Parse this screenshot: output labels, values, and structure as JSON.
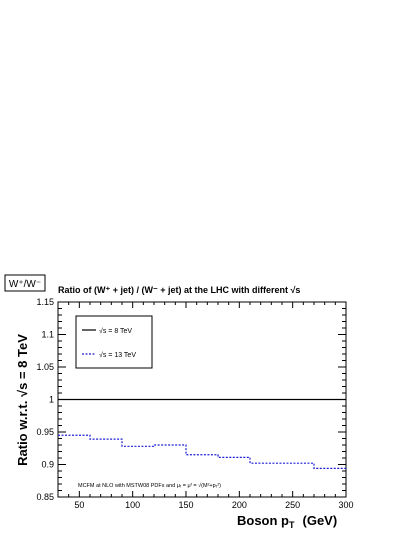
{
  "chart_data": {
    "type": "line",
    "tag_box": "W⁺/W⁻",
    "title": "Ratio of (W⁺ + jet) / (W⁻ + jet) at the LHC with different √s",
    "xlabel_main": "Boson p",
    "xlabel_sub": "T",
    "xlabel_unit": "(GeV)",
    "ylabel": "Ratio w.r.t. √s = 8 TeV",
    "xlim": [
      30,
      300
    ],
    "ylim": [
      0.85,
      1.15
    ],
    "x_ticks": [
      50,
      100,
      150,
      200,
      250,
      300
    ],
    "y_ticks": [
      0.85,
      0.9,
      0.95,
      1,
      1.05,
      1.1,
      1.15
    ],
    "y_tick_labels": [
      "0.85",
      "0.9",
      "0.95",
      "1",
      "1.05",
      "1.1",
      "1.15"
    ],
    "legend_position": "top-left",
    "annotation": "MCFM at NLO with MSTW08 PDFs and μᵣ = μᶠ = √(M²+pₜ²)",
    "series": [
      {
        "name": "√s = 8 TeV",
        "style": "solid",
        "color": "#000000",
        "bin_edges": [
          30,
          300
        ],
        "values": [
          1.0
        ]
      },
      {
        "name": "√s = 13 TeV",
        "style": "dashed",
        "color": "#1c1cd6",
        "bin_edges": [
          30,
          60,
          90,
          120,
          150,
          180,
          210,
          240,
          270,
          300
        ],
        "values": [
          0.945,
          0.939,
          0.928,
          0.93,
          0.915,
          0.911,
          0.902,
          0.902,
          0.894
        ]
      }
    ]
  }
}
